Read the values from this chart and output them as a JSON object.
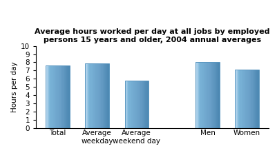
{
  "categories": [
    "Total",
    "Average\nweekday",
    "Average\nweekend day",
    "Men",
    "Women"
  ],
  "values": [
    7.6,
    7.9,
    5.8,
    8.0,
    7.1
  ],
  "x_positions": [
    0,
    1,
    2,
    3.8,
    4.8
  ],
  "bar_color_main": "#7ab4d8",
  "bar_color_left": "#b8d8f0",
  "bar_color_right": "#4a86b0",
  "bar_edge_color": "#5a96c0",
  "title": "Average hours worked per day at all jobs by employed\npersons 15 years and older, 2004 annual averages",
  "ylabel": "Hours per day",
  "ylim": [
    0,
    10
  ],
  "yticks": [
    0,
    1,
    2,
    3,
    4,
    5,
    6,
    7,
    8,
    9,
    10
  ],
  "title_fontsize": 8,
  "label_fontsize": 7.5,
  "tick_fontsize": 7.5,
  "bar_width": 0.6,
  "xlim": [
    -0.55,
    5.35
  ],
  "background_color": "#ffffff"
}
